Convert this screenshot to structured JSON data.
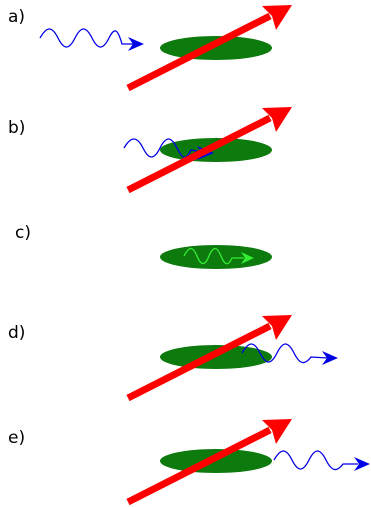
{
  "panels": [
    {
      "label": "a)"
    },
    {
      "label": "b)"
    },
    {
      "label": "c)"
    },
    {
      "label": "d)"
    },
    {
      "label": "e)"
    }
  ],
  "colors": {
    "disk": "#0d7a0d",
    "arrow": "#ff0000",
    "wave": "#0000e6",
    "inner_wave": "#33ee33"
  }
}
